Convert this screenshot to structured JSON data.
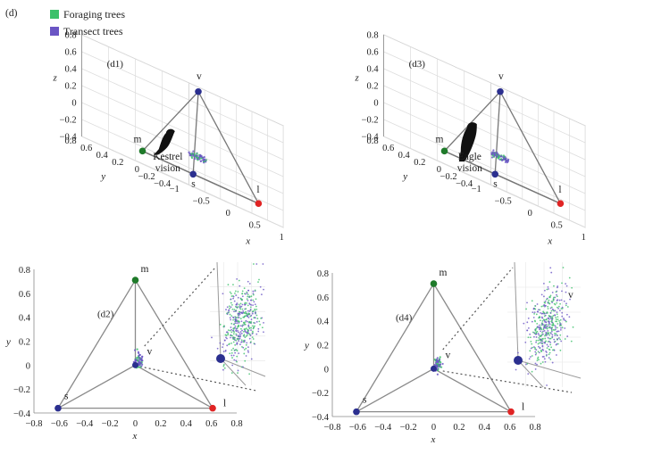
{
  "figure_label": "(d)",
  "legend": [
    {
      "label": "Foraging trees",
      "color": "#3cc16a"
    },
    {
      "label": "Transect trees",
      "color": "#6a55c4"
    }
  ],
  "colors": {
    "vertex_u": "#2b2f8f",
    "vertex_m": "#1f7a2a",
    "vertex_l": "#e02424",
    "frame": "#8a8a8a",
    "grid": "#dcdcdc"
  },
  "chart_data": [
    {
      "type": "scatter",
      "panel_label": "(d1)",
      "projection": "3d",
      "animal_label": [
        "Kestrel",
        "vision"
      ],
      "silhouette": "kestrel",
      "xlabel": "x",
      "ylabel": "y",
      "zlabel": "z",
      "x_ticks": [
        "−1",
        "−0.5",
        "0",
        "0.5",
        "1"
      ],
      "y_ticks": [
        "−0.4",
        "−0.2",
        "0",
        "0.2",
        "0.4",
        "0.6",
        "0.8"
      ],
      "z_ticks": [
        "−0.4",
        "−0.2",
        "0",
        "0.2",
        "0.4",
        "0.6",
        "0.8"
      ],
      "vertices": [
        {
          "label": "v",
          "x": 0,
          "y": 0,
          "z": 0.75
        },
        {
          "label": "m",
          "x": 0,
          "y": 0.71,
          "z": -0.25
        },
        {
          "label": "s",
          "x": -0.61,
          "y": -0.35,
          "z": -0.25
        },
        {
          "label": "l",
          "x": 0.61,
          "y": -0.35,
          "z": -0.25
        }
      ],
      "cluster": {
        "x": 0.02,
        "y": 0.02,
        "z": -0.02
      }
    },
    {
      "type": "scatter",
      "panel_label": "(d3)",
      "projection": "3d",
      "animal_label": [
        "Eagle",
        "vision"
      ],
      "silhouette": "eagle",
      "xlabel": "x",
      "ylabel": "y",
      "zlabel": "z",
      "x_ticks": [
        "−1",
        "−0.5",
        "0",
        "0.5",
        "1"
      ],
      "y_ticks": [
        "−0.4",
        "−0.2",
        "0",
        "0.2",
        "0.4",
        "0.6",
        "0.8"
      ],
      "z_ticks": [
        "−0.4",
        "−0.2",
        "0",
        "0.2",
        "0.4",
        "0.6",
        "0.8"
      ],
      "vertices": [
        {
          "label": "v",
          "x": 0,
          "y": 0,
          "z": 0.75
        },
        {
          "label": "m",
          "x": 0,
          "y": 0.71,
          "z": -0.25
        },
        {
          "label": "s",
          "x": -0.61,
          "y": -0.35,
          "z": -0.25
        },
        {
          "label": "l",
          "x": 0.61,
          "y": -0.35,
          "z": -0.25
        }
      ],
      "cluster": {
        "x": 0.02,
        "y": 0.02,
        "z": -0.02
      }
    },
    {
      "type": "scatter",
      "panel_label": "(d2)",
      "projection": "2d",
      "xlabel": "x",
      "ylabel": "y",
      "xlim": [
        -0.8,
        0.8
      ],
      "ylim": [
        -0.4,
        0.8
      ],
      "x_ticks": [
        "−0.8",
        "−0.6",
        "−0.4",
        "−0.2",
        "0",
        "0.2",
        "0.4",
        "0.6",
        "0.8"
      ],
      "y_ticks": [
        "−0.4",
        "−0.2",
        "0",
        "0.2",
        "0.4",
        "0.6",
        "0.8"
      ],
      "vertices": [
        {
          "label": "m",
          "x": 0,
          "y": 0.71
        },
        {
          "label": "s",
          "x": -0.61,
          "y": -0.36
        },
        {
          "label": "l",
          "x": 0.61,
          "y": -0.36
        },
        {
          "label": "v",
          "x": 0,
          "y": 0
        }
      ],
      "cluster": {
        "x": 0.03,
        "y": 0.04
      },
      "inset_label": ""
    },
    {
      "type": "scatter",
      "panel_label": "(d4)",
      "projection": "2d",
      "xlabel": "x",
      "ylabel": "y",
      "xlim": [
        -0.8,
        0.8
      ],
      "ylim": [
        -0.4,
        0.8
      ],
      "x_ticks": [
        "−0.8",
        "−0.6",
        "−0.4",
        "−0.2",
        "0",
        "0.2",
        "0.4",
        "0.6",
        "0.8"
      ],
      "y_ticks": [
        "−0.4",
        "−0.2",
        "0",
        "0.2",
        "0.4",
        "0.6",
        "0.8"
      ],
      "vertices": [
        {
          "label": "m",
          "x": 0,
          "y": 0.71
        },
        {
          "label": "s",
          "x": -0.61,
          "y": -0.36
        },
        {
          "label": "l",
          "x": 0.61,
          "y": -0.36
        },
        {
          "label": "v",
          "x": 0,
          "y": 0
        }
      ],
      "cluster": {
        "x": 0.03,
        "y": 0.04
      },
      "inset_label": "v"
    }
  ]
}
